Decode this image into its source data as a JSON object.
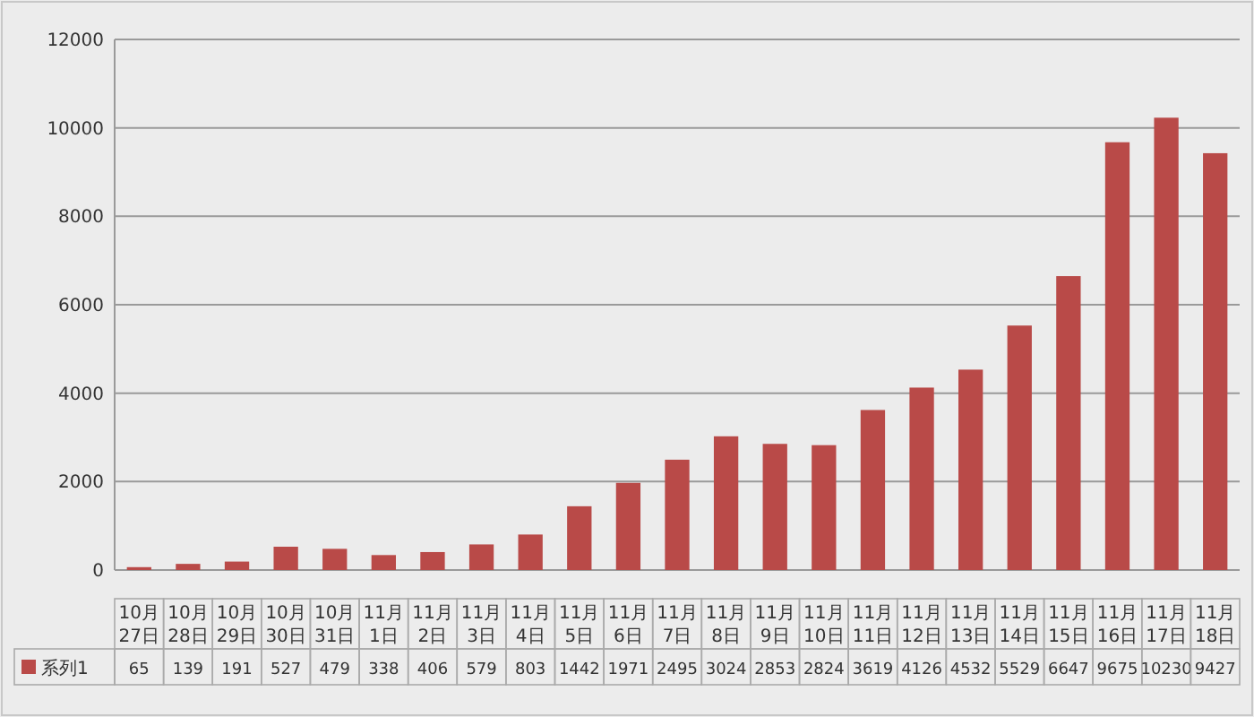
{
  "chart_data": {
    "type": "bar",
    "categories": [
      "10月27日",
      "10月28日",
      "10月29日",
      "10月30日",
      "10月31日",
      "11月1日",
      "11月2日",
      "11月3日",
      "11月4日",
      "11月5日",
      "11月6日",
      "11月7日",
      "11月8日",
      "11月9日",
      "11月10日",
      "11月11日",
      "11月12日",
      "11月13日",
      "11月14日",
      "11月15日",
      "11月16日",
      "11月17日",
      "11月18日"
    ],
    "series": [
      {
        "name": "系列1",
        "color": "#b94a48",
        "values": [
          65,
          139,
          191,
          527,
          479,
          338,
          406,
          579,
          803,
          1442,
          1971,
          2495,
          3024,
          2853,
          2824,
          3619,
          4126,
          4532,
          5529,
          6647,
          9675,
          10230,
          9427
        ]
      }
    ],
    "ylim": [
      0,
      12000
    ],
    "yticks": [
      0,
      2000,
      4000,
      6000,
      8000,
      10000,
      12000
    ],
    "grid": "y",
    "legend": "bottom",
    "data_labels": true
  }
}
